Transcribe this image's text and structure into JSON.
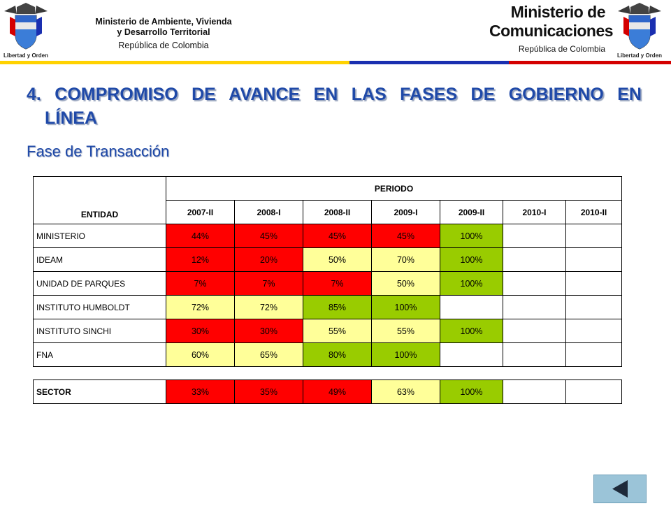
{
  "header": {
    "left_ministry": {
      "line1": "Ministerio de Ambiente, Vivienda",
      "line2": "y Desarrollo Territorial",
      "line3": "República de Colombia"
    },
    "right_ministry": {
      "line1": "Ministerio de",
      "line2": "Comunicaciones",
      "line3": "República de Colombia"
    },
    "crest_caption": "Libertad y Orden",
    "stripe_colors": [
      "#ffd200",
      "#1a2fb0",
      "#d40000"
    ]
  },
  "title": {
    "line1": "4. COMPROMISO DE AVANCE EN LAS FASES DE GOBIERNO EN",
    "line2": "LÍNEA"
  },
  "subtitle": "Fase de Transacción",
  "table": {
    "entity_header": "ENTIDAD",
    "period_header": "PERIODO",
    "periods": [
      "2007-II",
      "2008-I",
      "2008-II",
      "2009-I",
      "2009-II",
      "2010-I",
      "2010-II"
    ],
    "rows": [
      {
        "name": "MINISTERIO",
        "values": [
          "44%",
          "45%",
          "45%",
          "45%",
          "100%",
          "",
          ""
        ],
        "colors": [
          "red",
          "red",
          "red",
          "red",
          "green",
          "white",
          "white"
        ]
      },
      {
        "name": "IDEAM",
        "values": [
          "12%",
          "20%",
          "50%",
          "70%",
          "100%",
          "",
          ""
        ],
        "colors": [
          "red",
          "red",
          "yellow",
          "yellow",
          "green",
          "white",
          "white"
        ]
      },
      {
        "name": "UNIDAD DE PARQUES",
        "values": [
          "7%",
          "7%",
          "7%",
          "50%",
          "100%",
          "",
          ""
        ],
        "colors": [
          "red",
          "red",
          "red",
          "yellow",
          "green",
          "white",
          "white"
        ]
      },
      {
        "name": "INSTITUTO HUMBOLDT",
        "values": [
          "72%",
          "72%",
          "85%",
          "100%",
          "",
          "",
          ""
        ],
        "colors": [
          "yellow",
          "yellow",
          "green",
          "green",
          "white",
          "white",
          "white"
        ]
      },
      {
        "name": "INSTITUTO SINCHI",
        "values": [
          "30%",
          "30%",
          "55%",
          "55%",
          "100%",
          "",
          ""
        ],
        "colors": [
          "red",
          "red",
          "yellow",
          "yellow",
          "green",
          "white",
          "white"
        ]
      },
      {
        "name": "FNA",
        "values": [
          "60%",
          "65%",
          "80%",
          "100%",
          "",
          "",
          ""
        ],
        "colors": [
          "yellow",
          "yellow",
          "green",
          "green",
          "white",
          "white",
          "white"
        ]
      }
    ],
    "sector": {
      "name": "SECTOR",
      "values": [
        "33%",
        "35%",
        "49%",
        "63%",
        "100%",
        "",
        ""
      ],
      "colors": [
        "red",
        "red",
        "red",
        "yellow",
        "green",
        "white",
        "white"
      ]
    }
  },
  "nav": {
    "back_icon": "triangle-left-icon"
  }
}
